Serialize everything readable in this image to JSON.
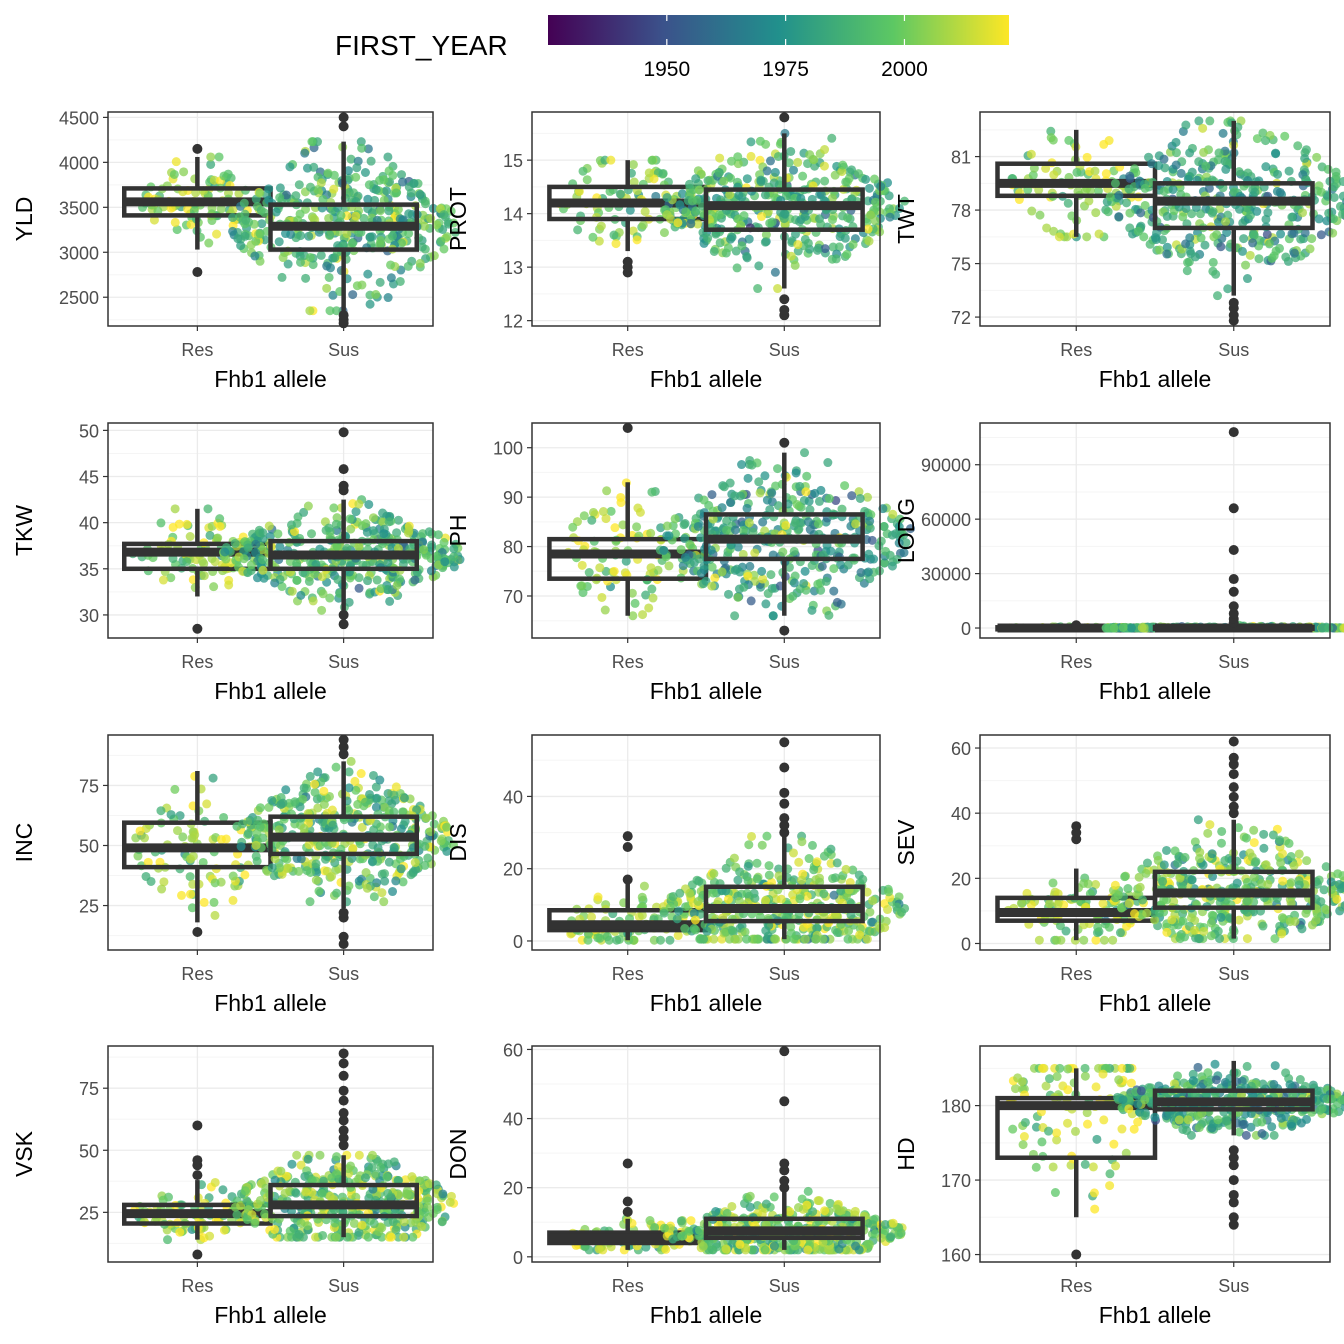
{
  "legend": {
    "title": "FIRST_YEAR",
    "ticks": [
      1950,
      1975,
      2000
    ],
    "range": [
      1925,
      2022
    ],
    "colors": [
      "#440154",
      "#3b528b",
      "#21908c",
      "#5dc863",
      "#fde725"
    ]
  },
  "style": {
    "box_color": "#333333",
    "grid_major": "#ebebeb",
    "grid_minor": "#f5f5f5",
    "panel_border": "#333333"
  },
  "chart_data": [
    {
      "type": "box",
      "ylabel": "YLD",
      "xlabel": "Fhb1 allele",
      "categories": [
        "Res",
        "Sus"
      ],
      "ylim": [
        2180,
        4560
      ],
      "yticks": [
        2500,
        3000,
        3500,
        4000,
        4500
      ],
      "series": [
        {
          "name": "Res",
          "q1": 3410,
          "median": 3560,
          "q3": 3710,
          "whisker_low": 3030,
          "whisker_high": 4060,
          "outliers": [
            2780,
            4150
          ],
          "n": 90,
          "spread": 0.35,
          "year_mean": 2005
        },
        {
          "name": "Sus",
          "q1": 3030,
          "median": 3290,
          "q3": 3530,
          "whisker_low": 2350,
          "whisker_high": 4230,
          "outliers": [
            2210,
            2250,
            2300,
            4400,
            4500
          ],
          "n": 400,
          "spread": 0.7,
          "year_mean": 1990
        }
      ]
    },
    {
      "type": "box",
      "ylabel": "PROT",
      "xlabel": "Fhb1 allele",
      "categories": [
        "Res",
        "Sus"
      ],
      "ylim": [
        11.9,
        15.9
      ],
      "yticks": [
        12,
        13,
        14,
        15
      ],
      "series": [
        {
          "name": "Res",
          "q1": 13.9,
          "median": 14.2,
          "q3": 14.5,
          "whisker_low": 13.3,
          "whisker_high": 15.0,
          "outliers": [
            12.9,
            13.0,
            13.1
          ],
          "n": 90,
          "spread": 0.4,
          "year_mean": 2005
        },
        {
          "name": "Sus",
          "q1": 13.7,
          "median": 14.15,
          "q3": 14.45,
          "whisker_low": 12.6,
          "whisker_high": 15.5,
          "outliers": [
            12.1,
            12.2,
            12.4,
            15.8
          ],
          "n": 400,
          "spread": 0.7,
          "year_mean": 1990
        }
      ]
    },
    {
      "type": "box",
      "ylabel": "TWT",
      "xlabel": "Fhb1 allele",
      "categories": [
        "Res",
        "Sus"
      ],
      "ylim": [
        71.5,
        83.5
      ],
      "yticks": [
        72,
        75,
        78,
        81
      ],
      "series": [
        {
          "name": "Res",
          "q1": 78.8,
          "median": 79.5,
          "q3": 80.6,
          "whisker_low": 76.5,
          "whisker_high": 82.5,
          "outliers": [],
          "n": 90,
          "spread": 0.4,
          "year_mean": 2005
        },
        {
          "name": "Sus",
          "q1": 77.0,
          "median": 78.5,
          "q3": 79.5,
          "whisker_low": 73.2,
          "whisker_high": 83.0,
          "outliers": [
            71.8,
            72.1,
            72.5,
            72.8
          ],
          "n": 400,
          "spread": 0.75,
          "year_mean": 1985
        }
      ]
    },
    {
      "type": "box",
      "ylabel": "TKW",
      "xlabel": "Fhb1 allele",
      "categories": [
        "Res",
        "Sus"
      ],
      "ylim": [
        27.5,
        50.8
      ],
      "yticks": [
        30,
        35,
        40,
        45,
        50
      ],
      "series": [
        {
          "name": "Res",
          "q1": 35.0,
          "median": 36.8,
          "q3": 37.7,
          "whisker_low": 32.0,
          "whisker_high": 41.5,
          "outliers": [
            28.5
          ],
          "n": 90,
          "spread": 0.4,
          "year_mean": 2005
        },
        {
          "name": "Sus",
          "q1": 35.0,
          "median": 36.5,
          "q3": 38.0,
          "whisker_low": 30.5,
          "whisker_high": 42.5,
          "outliers": [
            29.0,
            30.0,
            43.5,
            44.0,
            45.8,
            49.8
          ],
          "n": 400,
          "spread": 0.75,
          "year_mean": 1990
        }
      ]
    },
    {
      "type": "box",
      "ylabel": "PH",
      "xlabel": "Fhb1 allele",
      "categories": [
        "Res",
        "Sus"
      ],
      "ylim": [
        61.5,
        105
      ],
      "yticks": [
        70,
        80,
        90,
        100
      ],
      "series": [
        {
          "name": "Res",
          "q1": 73.5,
          "median": 78.5,
          "q3": 81.5,
          "whisker_low": 66.0,
          "whisker_high": 93.0,
          "outliers": [
            104
          ],
          "n": 90,
          "spread": 0.4,
          "year_mean": 2005
        },
        {
          "name": "Sus",
          "q1": 77.5,
          "median": 81.5,
          "q3": 86.5,
          "whisker_low": 66.0,
          "whisker_high": 99.0,
          "outliers": [
            63,
            101
          ],
          "n": 400,
          "spread": 0.75,
          "year_mean": 1985
        }
      ]
    },
    {
      "type": "box",
      "ylabel": "LODG",
      "xlabel": "Fhb1 allele",
      "categories": [
        "Res",
        "Sus"
      ],
      "ylim": [
        -5500,
        113000
      ],
      "yticks": [
        0,
        30000,
        60000,
        90000
      ],
      "series": [
        {
          "name": "Res",
          "q1": 0,
          "median": 0,
          "q3": 400,
          "whisker_low": 0,
          "whisker_high": 900,
          "outliers": [
            1500
          ],
          "n": 90,
          "spread": 0.4,
          "year_mean": 2005
        },
        {
          "name": "Sus",
          "q1": 0,
          "median": 0,
          "q3": 600,
          "whisker_low": 0,
          "whisker_high": 1500,
          "outliers": [
            3000,
            5000,
            8000,
            12000,
            20000,
            27000,
            43000,
            66000,
            108000
          ],
          "n": 300,
          "spread": 0.75,
          "year_mean": 1990
        }
      ]
    },
    {
      "type": "box",
      "ylabel": "INC",
      "xlabel": "Fhb1 allele",
      "categories": [
        "Res",
        "Sus"
      ],
      "ylim": [
        6.5,
        96
      ],
      "yticks": [
        25,
        50,
        75
      ],
      "series": [
        {
          "name": "Res",
          "q1": 41,
          "median": 49,
          "q3": 59.5,
          "whisker_low": 18,
          "whisker_high": 81,
          "outliers": [
            14
          ],
          "n": 90,
          "spread": 0.4,
          "year_mean": 2005
        },
        {
          "name": "Sus",
          "q1": 46.5,
          "median": 53.5,
          "q3": 62,
          "whisker_low": 24,
          "whisker_high": 85,
          "outliers": [
            9,
            12,
            20,
            22,
            88,
            91,
            94
          ],
          "n": 400,
          "spread": 0.7,
          "year_mean": 1995
        }
      ]
    },
    {
      "type": "box",
      "ylabel": "DIS",
      "xlabel": "Fhb1 allele",
      "categories": [
        "Res",
        "Sus"
      ],
      "ylim": [
        -2.5,
        57
      ],
      "yticks": [
        0,
        20,
        40
      ],
      "series": [
        {
          "name": "Res",
          "q1": 3.0,
          "median": 4.5,
          "q3": 8.5,
          "whisker_low": 0.2,
          "whisker_high": 16.0,
          "outliers": [
            17,
            26,
            29
          ],
          "n": 90,
          "spread": 0.4,
          "year_mean": 2005
        },
        {
          "name": "Sus",
          "q1": 5.5,
          "median": 9.0,
          "q3": 15.0,
          "whisker_low": 0.5,
          "whisker_high": 29.0,
          "outliers": [
            30,
            32,
            34,
            38,
            41,
            48,
            55
          ],
          "n": 400,
          "spread": 0.7,
          "year_mean": 1998
        }
      ]
    },
    {
      "type": "box",
      "ylabel": "SEV",
      "xlabel": "Fhb1 allele",
      "categories": [
        "Res",
        "Sus"
      ],
      "ylim": [
        -2,
        64
      ],
      "yticks": [
        0,
        20,
        40,
        60
      ],
      "series": [
        {
          "name": "Res",
          "q1": 7.0,
          "median": 9.5,
          "q3": 14.0,
          "whisker_low": 1.0,
          "whisker_high": 23.0,
          "outliers": [
            32,
            34,
            36
          ],
          "n": 90,
          "spread": 0.4,
          "year_mean": 2005
        },
        {
          "name": "Sus",
          "q1": 11.0,
          "median": 15.5,
          "q3": 22.0,
          "whisker_low": 1.5,
          "whisker_high": 38.0,
          "outliers": [
            40,
            42,
            45,
            48,
            52,
            55,
            57,
            62
          ],
          "n": 400,
          "spread": 0.7,
          "year_mean": 1998
        }
      ]
    },
    {
      "type": "box",
      "ylabel": "VSK",
      "xlabel": "Fhb1 allele",
      "categories": [
        "Res",
        "Sus"
      ],
      "ylim": [
        5,
        92
      ],
      "yticks": [
        25,
        50,
        75
      ],
      "series": [
        {
          "name": "Res",
          "q1": 20.5,
          "median": 24.5,
          "q3": 28.0,
          "whisker_low": 14.0,
          "whisker_high": 38.0,
          "outliers": [
            8,
            40,
            44,
            46,
            60
          ],
          "n": 90,
          "spread": 0.4,
          "year_mean": 2005
        },
        {
          "name": "Sus",
          "q1": 23.5,
          "median": 28.0,
          "q3": 36.0,
          "whisker_low": 15.0,
          "whisker_high": 48.0,
          "outliers": [
            52,
            55,
            58,
            62,
            65,
            70,
            74,
            80,
            85,
            89
          ],
          "n": 400,
          "spread": 0.7,
          "year_mean": 1998
        }
      ]
    },
    {
      "type": "box",
      "ylabel": "DON",
      "xlabel": "Fhb1 allele",
      "categories": [
        "Res",
        "Sus"
      ],
      "ylim": [
        -1.5,
        61
      ],
      "yticks": [
        0,
        20,
        40,
        60
      ],
      "series": [
        {
          "name": "Res",
          "q1": 4.0,
          "median": 5.5,
          "q3": 7.0,
          "whisker_low": 2.0,
          "whisker_high": 11.0,
          "outliers": [
            13,
            16,
            27
          ],
          "n": 90,
          "spread": 0.4,
          "year_mean": 2005
        },
        {
          "name": "Sus",
          "q1": 5.5,
          "median": 7.5,
          "q3": 11.0,
          "whisker_low": 2.0,
          "whisker_high": 19.0,
          "outliers": [
            20,
            22,
            25,
            27,
            45,
            59.5
          ],
          "n": 400,
          "spread": 0.7,
          "year_mean": 2000
        }
      ]
    },
    {
      "type": "box",
      "ylabel": "HD",
      "xlabel": "Fhb1 allele",
      "categories": [
        "Res",
        "Sus"
      ],
      "ylim": [
        159,
        188
      ],
      "yticks": [
        160,
        170,
        180
      ],
      "series": [
        {
          "name": "Res",
          "q1": 173.0,
          "median": 180.0,
          "q3": 181.0,
          "whisker_low": 165.0,
          "whisker_high": 185.0,
          "outliers": [
            160
          ],
          "n": 110,
          "spread": 0.4,
          "year_mean": 2005
        },
        {
          "name": "Sus",
          "q1": 179.5,
          "median": 180.5,
          "q3": 182.0,
          "whisker_low": 176.0,
          "whisker_high": 186.0,
          "outliers": [
            164,
            165,
            167,
            168,
            170,
            172,
            173,
            174
          ],
          "n": 400,
          "spread": 0.7,
          "year_mean": 1985
        }
      ]
    }
  ]
}
